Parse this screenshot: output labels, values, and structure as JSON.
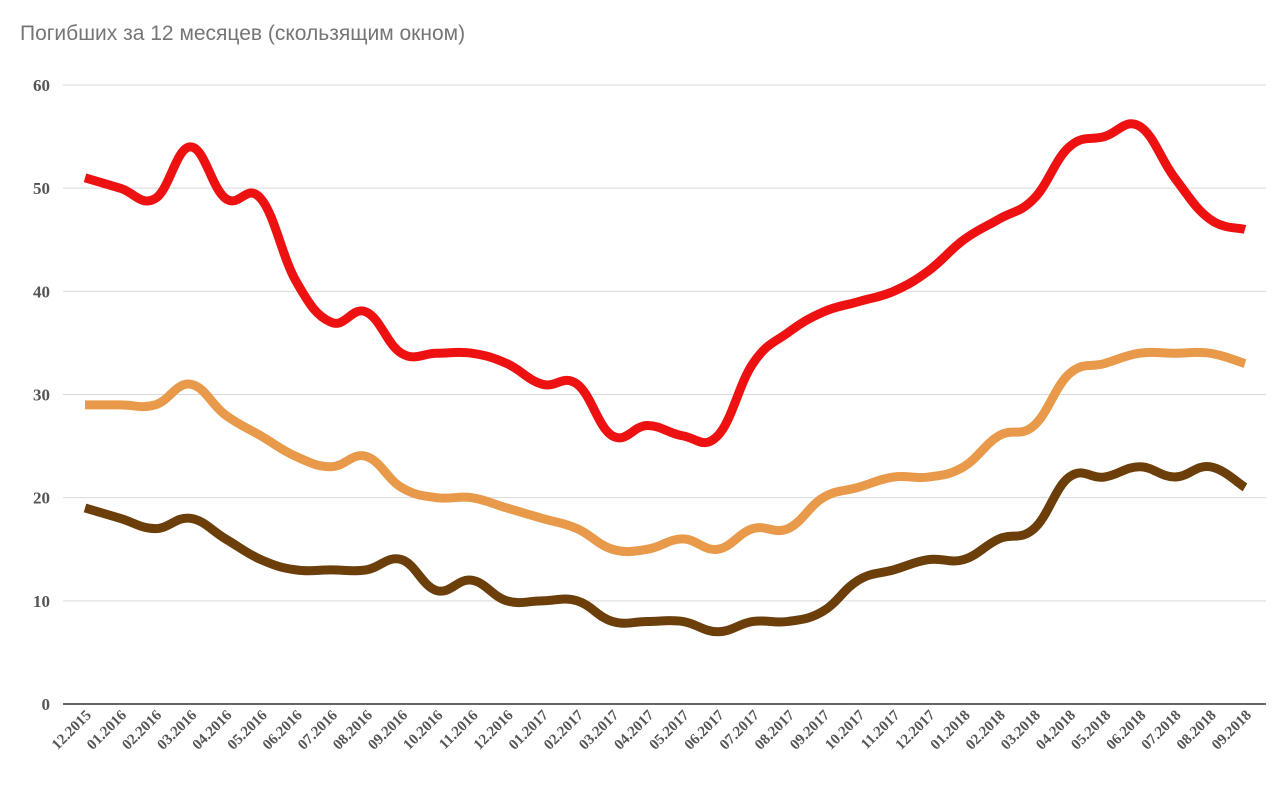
{
  "chart_data": {
    "type": "line",
    "title": "Погибших за 12 месяцев (скользящим окном)",
    "xlabel": "",
    "ylabel": "",
    "ylim": [
      0,
      60
    ],
    "yticks": [
      0,
      10,
      20,
      30,
      40,
      50,
      60
    ],
    "grid": true,
    "categories": [
      "12.2015",
      "01.2016",
      "02.2016",
      "03.2016",
      "04.2016",
      "05.2016",
      "06.2016",
      "07.2016",
      "08.2016",
      "09.2016",
      "10.2016",
      "11.2016",
      "12.2016",
      "01.2017",
      "02.2017",
      "03.2017",
      "04.2017",
      "05.2017",
      "06.2017",
      "07.2017",
      "08.2017",
      "09.2017",
      "10.2017",
      "11.2017",
      "12.2017",
      "01.2018",
      "02.2018",
      "03.2018",
      "04.2018",
      "05.2018",
      "06.2018",
      "07.2018",
      "08.2018",
      "09.2018"
    ],
    "series": [
      {
        "color": "#ee1111",
        "values": [
          51,
          50,
          49,
          54,
          49,
          49,
          41,
          37,
          38,
          34,
          34,
          34,
          33,
          31,
          31,
          26,
          27,
          26,
          26,
          33,
          36,
          38,
          39,
          40,
          42,
          45,
          47,
          49,
          54,
          55,
          56,
          51,
          47,
          46
        ]
      },
      {
        "color": "#e89a4a",
        "values": [
          29,
          29,
          29,
          31,
          28,
          26,
          24,
          23,
          24,
          21,
          20,
          20,
          19,
          18,
          17,
          15,
          15,
          16,
          15,
          17,
          17,
          20,
          21,
          22,
          22,
          23,
          26,
          27,
          32,
          33,
          34,
          34,
          34,
          33
        ]
      },
      {
        "color": "#6b3e0a",
        "values": [
          19,
          18,
          17,
          18,
          16,
          14,
          13,
          13,
          13,
          14,
          11,
          12,
          10,
          10,
          10,
          8,
          8,
          8,
          7,
          8,
          8,
          9,
          12,
          13,
          14,
          14,
          16,
          17,
          22,
          22,
          23,
          22,
          23,
          21
        ]
      }
    ]
  }
}
